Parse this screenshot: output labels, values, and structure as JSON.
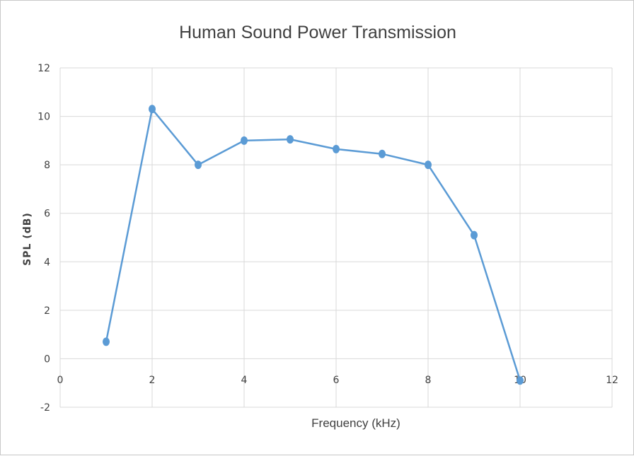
{
  "chart_data": {
    "type": "scatter",
    "title": "Human Sound Power Transmission",
    "xlabel": "Frequency (kHz)",
    "ylabel": "SPL (dB)",
    "xlim": [
      0,
      12
    ],
    "ylim": [
      -2,
      12
    ],
    "x_ticks": [
      "0",
      "2",
      "4",
      "6",
      "8",
      "10",
      "12"
    ],
    "y_ticks": [
      "-2",
      "0",
      "2",
      "4",
      "6",
      "8",
      "10",
      "12"
    ],
    "grid": true,
    "legend": "none",
    "line_color": "#5b9bd5",
    "marker_color": "#5b9bd5",
    "series": [
      {
        "x": [
          1,
          2,
          3,
          4,
          5,
          6,
          7,
          8,
          9,
          10
        ],
        "y": [
          0.7,
          10.3,
          8.0,
          9.0,
          9.05,
          8.65,
          8.45,
          8.0,
          5.1,
          -0.9
        ]
      }
    ]
  }
}
